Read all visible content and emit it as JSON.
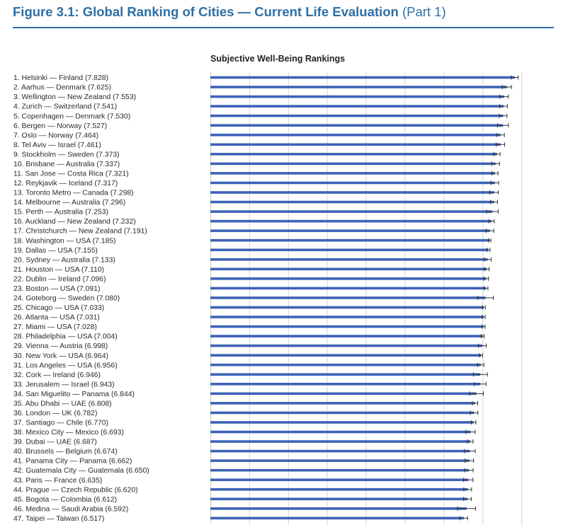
{
  "figure_title": "Figure 3.1: Global Ranking of Cities — Current Life Evaluation",
  "figure_part": "(Part 1)",
  "chart_data": {
    "type": "bar",
    "title": "Subjective Well-Being Rankings",
    "orientation": "horizontal",
    "categories": [
      "1. Helsinki — Finland (7.828)",
      "2. Aarhus — Denmark (7.625)",
      "3. Wellington — New Zealand (7.553)",
      "4. Zurich — Switzerland (7.541)",
      "5. Copenhagen — Denmark (7.530)",
      "6. Bergen — Norway (7.527)",
      "7. Oslo — Norway (7.464)",
      "8. Tel Aviv — Israel (7.461)",
      "9. Stockholm — Sweden (7.373)",
      "10. Brisbane — Australia (7.337)",
      "11. San Jose — Costa Rica (7.321)",
      "12. Reykjavik — Iceland (7.317)",
      "13. Toronto Metro — Canada (7.298)",
      "14. Melbourne — Australia (7.296)",
      "15. Perth — Australia (7.253)",
      "16. Auckland — New Zealand (7.232)",
      "17. Christchurch — New Zealand (7.191)",
      "18. Washington — USA (7.185)",
      "19. Dallas — USA (7.155)",
      "20. Sydney — Australia (7.133)",
      "21. Houston — USA (7.110)",
      "22. Dublin — Ireland (7.096)",
      "23. Boston — USA (7.091)",
      "24. Goteborg — Sweden (7.080)",
      "25. Chicago — USA (7.033)",
      "26. Atlanta — USA (7.031)",
      "27. Miami — USA (7.028)",
      "28. Philadelphia — USA (7.004)",
      "29. Vienna — Austria (6.998)",
      "30. New York — USA (6.964)",
      "31. Los Angeles — USA (6.956)",
      "32. Cork — Ireland (6.946)",
      "33. Jerusalem — Israel (6.943)",
      "34. San Miguelito — Panama (6.844)",
      "35. Abu Dhabi — UAE (6.808)",
      "36. London — UK (6.782)",
      "37. Santiago — Chile (6.770)",
      "38. Mexico City — Mexico (6.693)",
      "39. Dubai — UAE (6.687)",
      "40. Brussels — Belgium (6.674)",
      "41. Panama City — Panama (6.662)",
      "42. Guatemala City — Guatemala (6.650)",
      "43. Paris — France (6.635)",
      "44. Prague — Czech Republic (6.620)",
      "45. Bogota — Colombia (6.612)",
      "46. Medina — Saudi Arabia (6.592)",
      "47. Taipei — Taiwan (6.517)"
    ],
    "values": [
      7.828,
      7.625,
      7.553,
      7.541,
      7.53,
      7.527,
      7.464,
      7.461,
      7.373,
      7.337,
      7.321,
      7.317,
      7.298,
      7.296,
      7.253,
      7.232,
      7.191,
      7.185,
      7.155,
      7.133,
      7.11,
      7.096,
      7.091,
      7.08,
      7.033,
      7.031,
      7.028,
      7.004,
      6.998,
      6.964,
      6.956,
      6.946,
      6.943,
      6.844,
      6.808,
      6.782,
      6.77,
      6.693,
      6.687,
      6.674,
      6.662,
      6.65,
      6.635,
      6.62,
      6.612,
      6.592,
      6.517
    ],
    "error_margins": [
      0.09,
      0.12,
      0.11,
      0.1,
      0.1,
      0.14,
      0.1,
      0.11,
      0.08,
      0.1,
      0.08,
      0.1,
      0.11,
      0.09,
      0.15,
      0.07,
      0.1,
      0.03,
      0.04,
      0.09,
      0.06,
      0.06,
      0.05,
      0.2,
      0.04,
      0.04,
      0.04,
      0.04,
      0.1,
      0.04,
      0.08,
      0.18,
      0.15,
      0.18,
      0.07,
      0.1,
      0.06,
      0.12,
      0.07,
      0.14,
      0.11,
      0.11,
      0.12,
      0.1,
      0.1,
      0.23,
      0.1
    ],
    "xlim": [
      0,
      8.8
    ],
    "grid": true,
    "colors": {
      "bar": "#3d63b8",
      "error_bar": "#333333",
      "grid": "#d4d4d4",
      "title": "#2e6fa7"
    }
  }
}
